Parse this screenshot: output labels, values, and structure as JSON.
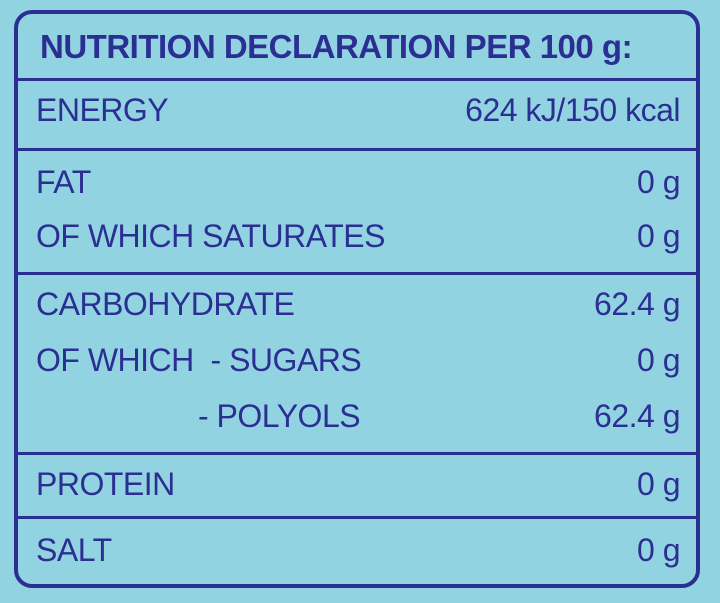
{
  "header": {
    "title": "NUTRITION DECLARATION PER 100 g:"
  },
  "sections": [
    {
      "rows": [
        {
          "label": "ENERGY",
          "value": "624 kJ/150 kcal"
        }
      ]
    },
    {
      "rows": [
        {
          "label": "FAT",
          "value": "0 g"
        },
        {
          "label": "OF WHICH SATURATES",
          "value": "0 g"
        }
      ]
    },
    {
      "rows": [
        {
          "label": "CARBOHYDRATE",
          "value": "62.4 g"
        },
        {
          "label": "OF WHICH  - SUGARS",
          "value": "0 g"
        },
        {
          "label": "- POLYOLS",
          "value": "62.4 g"
        }
      ]
    },
    {
      "rows": [
        {
          "label": "PROTEIN",
          "value": "0 g"
        }
      ]
    },
    {
      "rows": [
        {
          "label": "SALT",
          "value": "0 g"
        }
      ]
    }
  ]
}
